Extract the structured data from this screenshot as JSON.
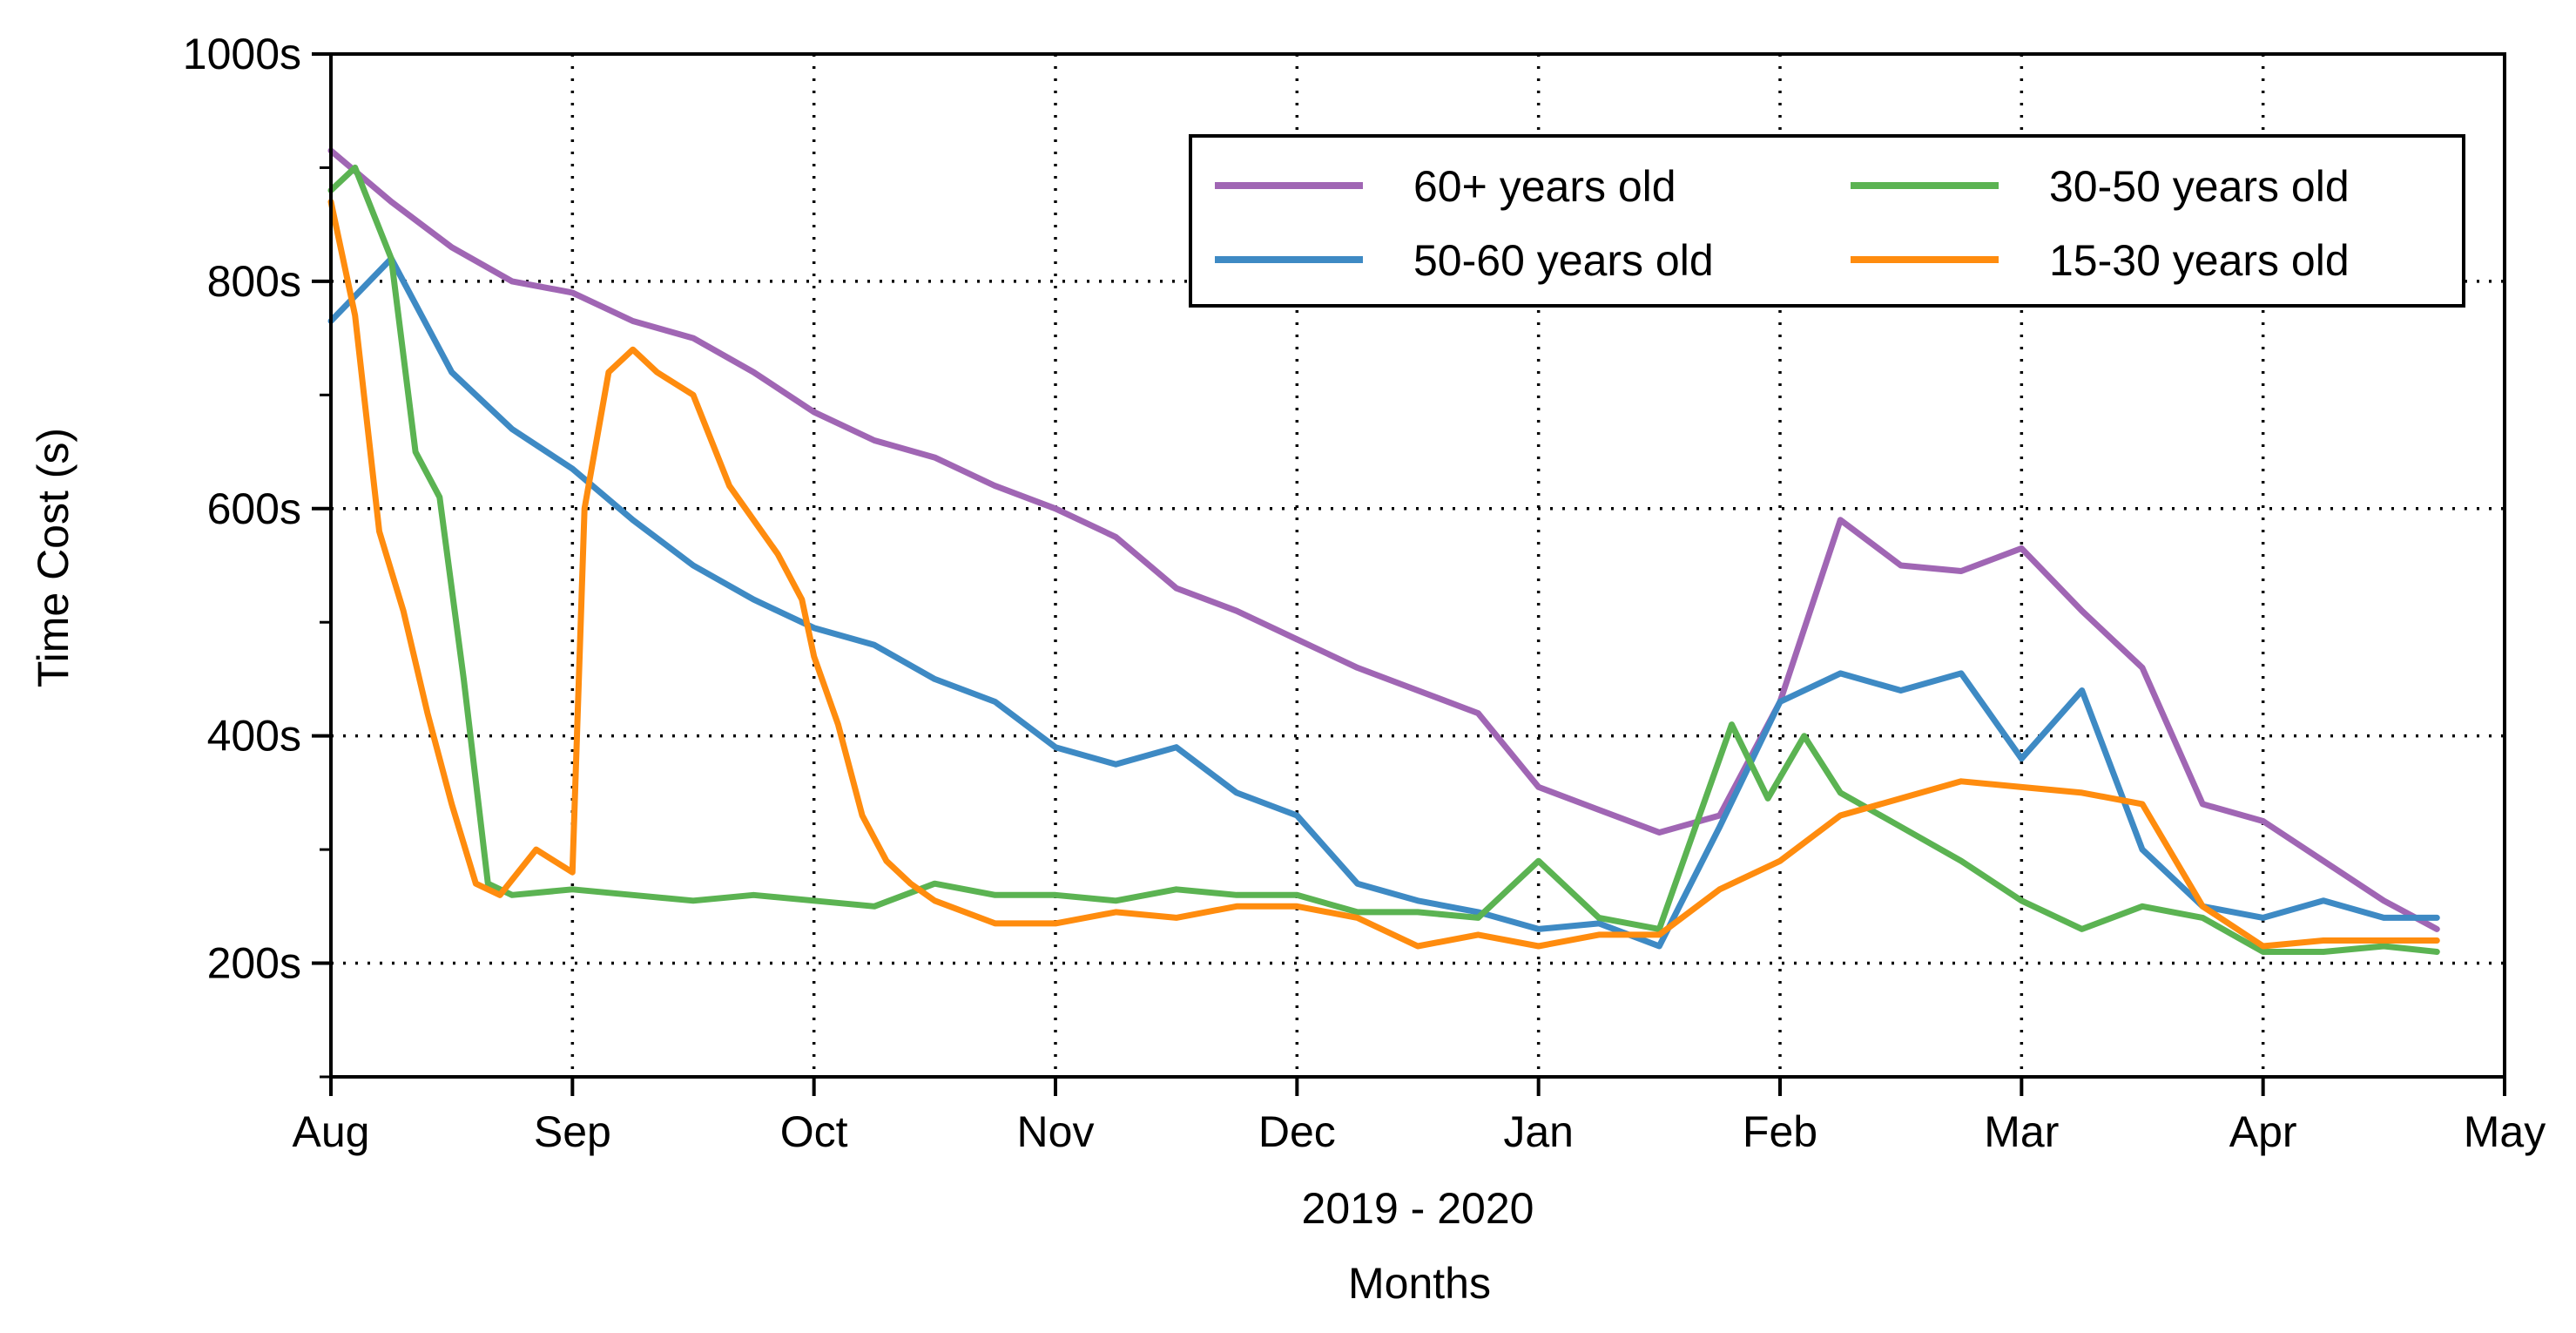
{
  "chart_data": {
    "type": "line",
    "title": "",
    "xlabel": "Months",
    "xsublabel": "2019 - 2020",
    "ylabel": "Time Cost (s)",
    "xlim": [
      0,
      9
    ],
    "ylim": [
      100,
      1000
    ],
    "xticks": [
      {
        "value": 0,
        "label": "Aug"
      },
      {
        "value": 1,
        "label": "Sep"
      },
      {
        "value": 2,
        "label": "Oct"
      },
      {
        "value": 3,
        "label": "Nov"
      },
      {
        "value": 4,
        "label": "Dec"
      },
      {
        "value": 5,
        "label": "Jan"
      },
      {
        "value": 6,
        "label": "Feb"
      },
      {
        "value": 7,
        "label": "Mar"
      },
      {
        "value": 8,
        "label": "Apr"
      },
      {
        "value": 9,
        "label": "May"
      }
    ],
    "yticks": [
      {
        "value": 200,
        "label": "200s"
      },
      {
        "value": 400,
        "label": "400s"
      },
      {
        "value": 600,
        "label": "600s"
      },
      {
        "value": 800,
        "label": "800s"
      },
      {
        "value": 1000,
        "label": "1000s"
      }
    ],
    "y_minor_ticks": [
      100,
      300,
      500,
      700,
      900
    ],
    "grid": "dotted",
    "legend_position": "top-right",
    "colors": {
      "60plus": "#a066b4",
      "50_60": "#3e8ac4",
      "30_50": "#5bb352",
      "15_30": "#ff8c0e",
      "axis": "#000000"
    },
    "series": [
      {
        "name": "60+ years old",
        "color": "#a066b4",
        "x": [
          0,
          0.25,
          0.5,
          0.75,
          1,
          1.25,
          1.5,
          1.75,
          2,
          2.25,
          2.5,
          2.75,
          3,
          3.25,
          3.5,
          3.75,
          4,
          4.25,
          4.5,
          4.75,
          5,
          5.25,
          5.5,
          5.75,
          6,
          6.25,
          6.5,
          6.75,
          7,
          7.25,
          7.5,
          7.75,
          8,
          8.25,
          8.5,
          8.72
        ],
        "y": [
          915,
          870,
          830,
          800,
          790,
          765,
          750,
          720,
          685,
          660,
          645,
          620,
          600,
          575,
          530,
          510,
          485,
          460,
          440,
          420,
          355,
          335,
          315,
          330,
          430,
          590,
          550,
          545,
          565,
          510,
          460,
          340,
          325,
          290,
          255,
          230
        ]
      },
      {
        "name": "50-60 years old",
        "color": "#3e8ac4",
        "x": [
          0,
          0.25,
          0.5,
          0.75,
          1,
          1.25,
          1.5,
          1.75,
          2,
          2.25,
          2.5,
          2.75,
          3,
          3.25,
          3.5,
          3.75,
          4,
          4.25,
          4.5,
          4.75,
          5,
          5.25,
          5.5,
          5.75,
          6,
          6.25,
          6.5,
          6.75,
          7,
          7.25,
          7.5,
          7.75,
          8,
          8.25,
          8.5,
          8.72
        ],
        "y": [
          765,
          820,
          720,
          670,
          635,
          590,
          550,
          520,
          495,
          480,
          450,
          430,
          390,
          375,
          390,
          350,
          330,
          270,
          255,
          245,
          230,
          235,
          215,
          320,
          430,
          455,
          440,
          455,
          380,
          440,
          300,
          250,
          240,
          255,
          240,
          240
        ]
      },
      {
        "name": "30-50 years old",
        "color": "#5bb352",
        "x": [
          0,
          0.1,
          0.25,
          0.35,
          0.45,
          0.55,
          0.65,
          0.75,
          1,
          1.25,
          1.5,
          1.75,
          2,
          2.25,
          2.5,
          2.75,
          3,
          3.25,
          3.5,
          3.75,
          4,
          4.25,
          4.5,
          4.75,
          5,
          5.25,
          5.5,
          5.65,
          5.8,
          5.95,
          6.1,
          6.25,
          6.5,
          6.75,
          7,
          7.25,
          7.5,
          7.75,
          8,
          8.25,
          8.5,
          8.72
        ],
        "y": [
          880,
          900,
          820,
          650,
          610,
          450,
          270,
          260,
          265,
          260,
          255,
          260,
          255,
          250,
          270,
          260,
          260,
          255,
          265,
          260,
          260,
          245,
          245,
          240,
          290,
          240,
          230,
          320,
          410,
          345,
          400,
          350,
          320,
          290,
          255,
          230,
          250,
          240,
          210,
          210,
          215,
          210
        ]
      },
      {
        "name": "15-30 years old",
        "color": "#ff8c0e",
        "x": [
          0,
          0.1,
          0.2,
          0.3,
          0.4,
          0.5,
          0.6,
          0.7,
          0.85,
          1,
          1.05,
          1.15,
          1.25,
          1.35,
          1.5,
          1.65,
          1.85,
          1.95,
          2,
          2.1,
          2.2,
          2.3,
          2.4,
          2.5,
          2.75,
          3,
          3.25,
          3.5,
          3.75,
          4,
          4.25,
          4.5,
          4.75,
          5,
          5.25,
          5.5,
          5.75,
          6,
          6.25,
          6.5,
          6.75,
          7,
          7.25,
          7.5,
          7.75,
          8,
          8.25,
          8.5,
          8.72
        ],
        "y": [
          870,
          770,
          580,
          510,
          420,
          340,
          270,
          260,
          300,
          280,
          600,
          720,
          740,
          720,
          700,
          620,
          560,
          520,
          470,
          410,
          330,
          290,
          270,
          255,
          235,
          235,
          245,
          240,
          250,
          250,
          240,
          215,
          225,
          215,
          225,
          225,
          265,
          290,
          330,
          345,
          360,
          355,
          350,
          340,
          250,
          215,
          220,
          220,
          220
        ]
      }
    ]
  },
  "legend": {
    "items": [
      {
        "label": "60+ years old",
        "color": "#a066b4"
      },
      {
        "label": "30-50 years old",
        "color": "#5bb352"
      },
      {
        "label": "50-60 years old",
        "color": "#3e8ac4"
      },
      {
        "label": "15-30 years old",
        "color": "#ff8c0e"
      }
    ]
  }
}
